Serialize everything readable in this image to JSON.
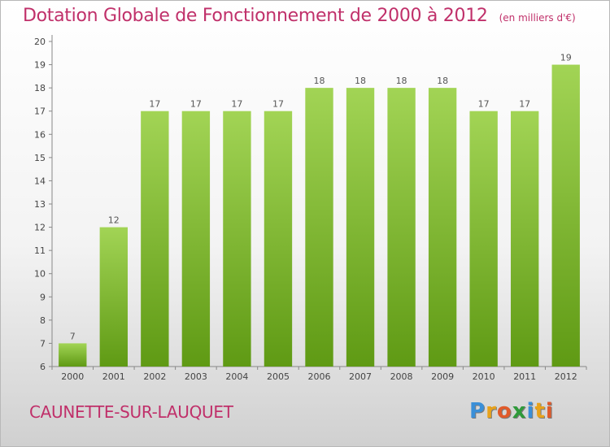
{
  "header": {
    "title": "Dotation Globale de Fonctionnement de 2000 à 2012",
    "subtitle": "(en milliers d'€)"
  },
  "footer": {
    "commune": "CAUNETTE-SUR-LAUQUET",
    "brand": {
      "letters": [
        "P",
        "r",
        "o",
        "x",
        "i",
        "t",
        "i"
      ],
      "colors": [
        "#3a8fd8",
        "#e8a21a",
        "#e05a2a",
        "#2f9a3a",
        "#3a8fd8",
        "#e8a21a",
        "#e05a2a"
      ]
    }
  },
  "chart_data": {
    "type": "bar",
    "categories": [
      "2000",
      "2001",
      "2002",
      "2003",
      "2004",
      "2005",
      "2006",
      "2007",
      "2008",
      "2009",
      "2010",
      "2011",
      "2012"
    ],
    "values": [
      7,
      12,
      17,
      17,
      17,
      17,
      18,
      18,
      18,
      18,
      17,
      17,
      19
    ],
    "data_labels": [
      "7",
      "12",
      "17",
      "17",
      "17",
      "17",
      "18",
      "18",
      "18",
      "18",
      "17",
      "17",
      "19"
    ],
    "ylim": [
      6,
      20
    ],
    "yticks": [
      6,
      7,
      8,
      9,
      10,
      11,
      12,
      13,
      14,
      15,
      16,
      17,
      18,
      19,
      20
    ],
    "xlabel": "",
    "ylabel": "",
    "grid": false,
    "bar_color_top": "#a2d455",
    "bar_color_bottom": "#5f9a14"
  }
}
